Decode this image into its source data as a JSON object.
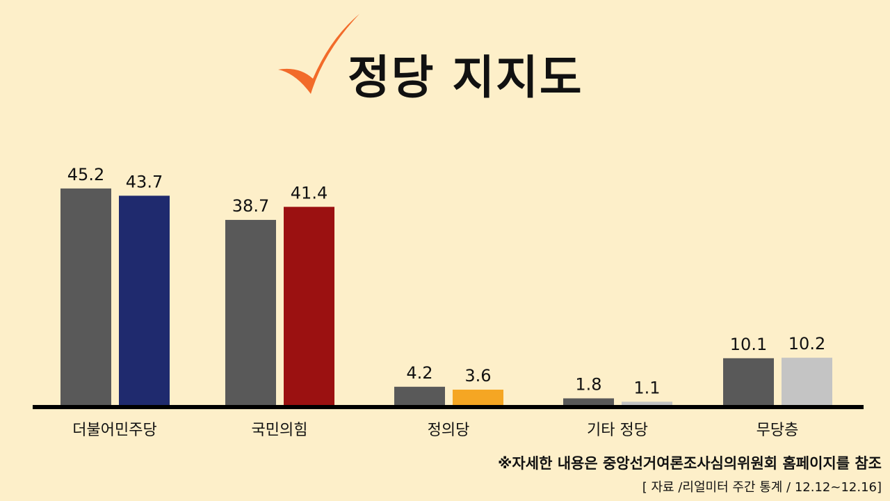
{
  "title": "정당 지지도",
  "icon": "check-mark-icon",
  "chart_data": {
    "type": "bar",
    "title": "정당 지지도",
    "categories": [
      "더불어민주당",
      "국민의힘",
      "정의당",
      "기타 정당",
      "무당층"
    ],
    "series": [
      {
        "values": [
          45.2,
          38.7,
          4.2,
          1.8,
          10.1
        ],
        "colors": [
          "#595959",
          "#595959",
          "#595959",
          "#595959",
          "#595959"
        ]
      },
      {
        "values": [
          43.7,
          41.4,
          3.6,
          1.1,
          10.2
        ],
        "colors": [
          "#1f2a6e",
          "#9b1111",
          "#f5a623",
          "#c2c2c2",
          "#c4c4c4"
        ]
      }
    ],
    "ylim": [
      0,
      50
    ],
    "grid": false,
    "data_labels": true
  },
  "footnote": "※자세한 내용은 중앙선거여론조사심의위원회 홈페이지를 참조",
  "source": "[ 자료 /리얼미터 주간 통계 / 12.12~12.16]",
  "colors": {
    "background": "#fdefc9",
    "accent": "#f26b2a"
  }
}
